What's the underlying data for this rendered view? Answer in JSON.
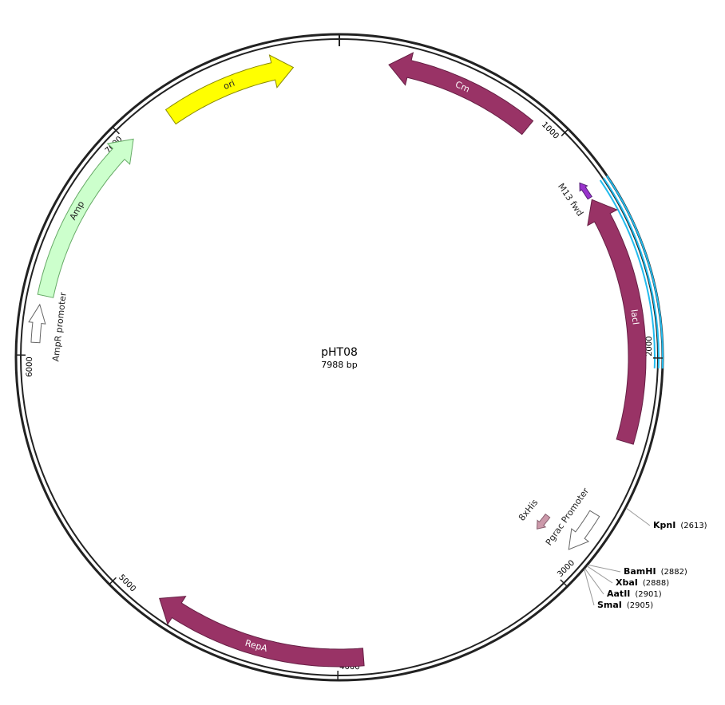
{
  "plasmid": {
    "name": "pHT08",
    "length": {
      "value": 7988,
      "label": "7988 bp"
    },
    "ticks": [
      1000,
      2000,
      3000,
      4000,
      5000,
      6000,
      7000
    ],
    "features": [
      {
        "label": "ori",
        "color": "#ffff00"
      },
      {
        "label": "Cm",
        "color": "#993366"
      },
      {
        "label": "lacI",
        "color": "#993366"
      },
      {
        "label": "RepA",
        "color": "#993366"
      },
      {
        "label": "Amp",
        "color": "#ccffcc"
      },
      {
        "label": "AmpR promoter",
        "color": "#ffffff"
      },
      {
        "label": "M13 fwd",
        "color": "#9933cc"
      },
      {
        "label": "8xHis",
        "color": "#cc99aa"
      },
      {
        "label": "Pgrac Promoter",
        "color": "#ffffff"
      }
    ],
    "sites": [
      {
        "name": "KpnI",
        "position": {
          "value": 2613,
          "label": "(2613)"
        }
      },
      {
        "name": "BamHI",
        "position": {
          "value": 2882,
          "label": "(2882)"
        }
      },
      {
        "name": "XbaI",
        "position": {
          "value": 2888,
          "label": "(2888)"
        }
      },
      {
        "name": "AatII",
        "position": {
          "value": 2901,
          "label": "(2901)"
        }
      },
      {
        "name": "SmaI",
        "position": {
          "value": 2905,
          "label": "(2905)"
        }
      }
    ]
  }
}
